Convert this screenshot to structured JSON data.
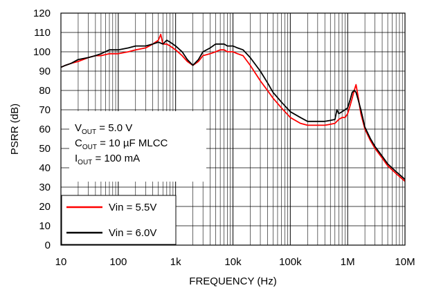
{
  "chart_data": {
    "type": "line",
    "xlabel": "FREQUENCY (Hz)",
    "ylabel": "PSRR (dB)",
    "x_scale": "log",
    "xlim": [
      10,
      10000000
    ],
    "ylim": [
      0,
      120
    ],
    "x_ticks": [
      {
        "value": 10,
        "label": "10"
      },
      {
        "value": 100,
        "label": "100"
      },
      {
        "value": 1000,
        "label": "1k"
      },
      {
        "value": 10000,
        "label": "10k"
      },
      {
        "value": 100000,
        "label": "100k"
      },
      {
        "value": 1000000,
        "label": "1M"
      },
      {
        "value": 10000000,
        "label": "10M"
      }
    ],
    "y_ticks": [
      0,
      10,
      20,
      30,
      40,
      50,
      60,
      70,
      80,
      90,
      100,
      110,
      120
    ],
    "grid": true,
    "legend_position": "bottom-left",
    "annotations": [
      {
        "main": "V",
        "sub": "OUT",
        "rest": " = 5.0 V"
      },
      {
        "main": "C",
        "sub": "OUT",
        "rest": " = 10 µF MLCC"
      },
      {
        "main": "I",
        "sub": "OUT",
        "rest": " = 100 mA"
      }
    ],
    "series": [
      {
        "name": "Vin = 5.5V",
        "color": "#ff0000",
        "x": [
          10,
          12,
          15,
          20,
          30,
          40,
          50,
          70,
          100,
          150,
          200,
          300,
          400,
          500,
          550,
          600,
          700,
          800,
          1000,
          1300,
          1600,
          2000,
          2500,
          3000,
          4000,
          5000,
          6000,
          7000,
          8000,
          10000,
          12000,
          15000,
          20000,
          30000,
          40000,
          50000,
          70000,
          100000,
          150000,
          200000,
          300000,
          400000,
          500000,
          600000,
          700000,
          800000,
          900000,
          1000000,
          1100000,
          1200000,
          1300000,
          1400000,
          1500000,
          1700000,
          2000000,
          2500000,
          3000000,
          4000000,
          5000000,
          7000000,
          10000000
        ],
        "y": [
          92,
          93,
          94,
          95,
          97,
          98,
          98,
          99,
          99,
          100,
          101,
          102,
          104,
          106,
          109,
          104,
          104,
          103,
          101,
          98,
          95,
          93,
          95,
          98,
          99,
          100,
          101,
          101,
          100,
          100,
          99,
          98,
          93,
          85,
          80,
          76,
          71,
          66,
          63,
          62,
          62,
          62,
          62.5,
          63,
          65,
          66,
          66,
          68,
          72,
          76,
          80,
          83,
          78,
          68,
          60,
          54,
          50,
          45,
          41,
          37,
          33
        ]
      },
      {
        "name": "Vin = 6.0V",
        "color": "#000000",
        "x": [
          10,
          12,
          15,
          20,
          30,
          40,
          50,
          70,
          100,
          150,
          200,
          300,
          400,
          500,
          600,
          700,
          800,
          1000,
          1300,
          1600,
          2000,
          2500,
          3000,
          4000,
          5000,
          6000,
          7000,
          8000,
          10000,
          12000,
          15000,
          20000,
          30000,
          40000,
          50000,
          70000,
          100000,
          150000,
          200000,
          300000,
          400000,
          500000,
          600000,
          650000,
          700000,
          800000,
          900000,
          1000000,
          1100000,
          1200000,
          1300000,
          1400000,
          1500000,
          1700000,
          2000000,
          2500000,
          3000000,
          4000000,
          5000000,
          7000000,
          10000000
        ],
        "y": [
          92,
          93,
          94,
          96,
          97,
          98,
          99,
          101,
          101,
          102,
          103,
          103,
          104,
          105,
          104,
          106,
          105,
          103,
          100,
          96,
          93,
          96,
          100,
          102,
          104,
          104,
          104,
          103,
          103,
          102,
          101,
          97,
          90,
          84,
          79,
          74,
          69,
          66,
          64,
          64,
          64,
          64.5,
          65,
          70,
          68,
          69,
          70,
          71,
          75,
          79,
          80,
          79,
          76,
          70,
          61,
          55,
          51,
          46,
          42,
          38,
          34
        ]
      }
    ]
  }
}
